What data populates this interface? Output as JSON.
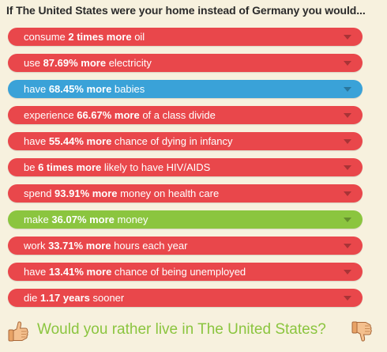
{
  "heading": "If The United States were your home instead of Germany you would...",
  "colors": {
    "red": "#e9474b",
    "blue": "#3aa2d8",
    "green": "#8bc53f",
    "background": "#f7f1de"
  },
  "items": [
    {
      "pre": "consume ",
      "bold": "2 times more",
      "post": " oil",
      "color": "red"
    },
    {
      "pre": "use ",
      "bold": "87.69% more",
      "post": " electricity",
      "color": "red"
    },
    {
      "pre": "have ",
      "bold": "68.45% more",
      "post": " babies",
      "color": "blue"
    },
    {
      "pre": "experience ",
      "bold": "66.67% more",
      "post": " of a class divide",
      "color": "red"
    },
    {
      "pre": "have ",
      "bold": "55.44% more",
      "post": " chance of dying in infancy",
      "color": "red"
    },
    {
      "pre": "be ",
      "bold": "6 times more",
      "post": " likely to have HIV/AIDS",
      "color": "red"
    },
    {
      "pre": "spend ",
      "bold": "93.91% more",
      "post": " money on health care",
      "color": "red"
    },
    {
      "pre": "make ",
      "bold": "36.07% more",
      "post": " money",
      "color": "green"
    },
    {
      "pre": "work ",
      "bold": "33.71% more",
      "post": " hours each year",
      "color": "red"
    },
    {
      "pre": "have ",
      "bold": "13.41% more",
      "post": " chance of being unemployed",
      "color": "red"
    },
    {
      "pre": "die ",
      "bold": "1.17 years",
      "post": " sooner",
      "color": "red"
    }
  ],
  "question": "Would you rather live in The United States?",
  "icons": {
    "up": "thumbs-up-icon",
    "down": "thumbs-down-icon"
  }
}
